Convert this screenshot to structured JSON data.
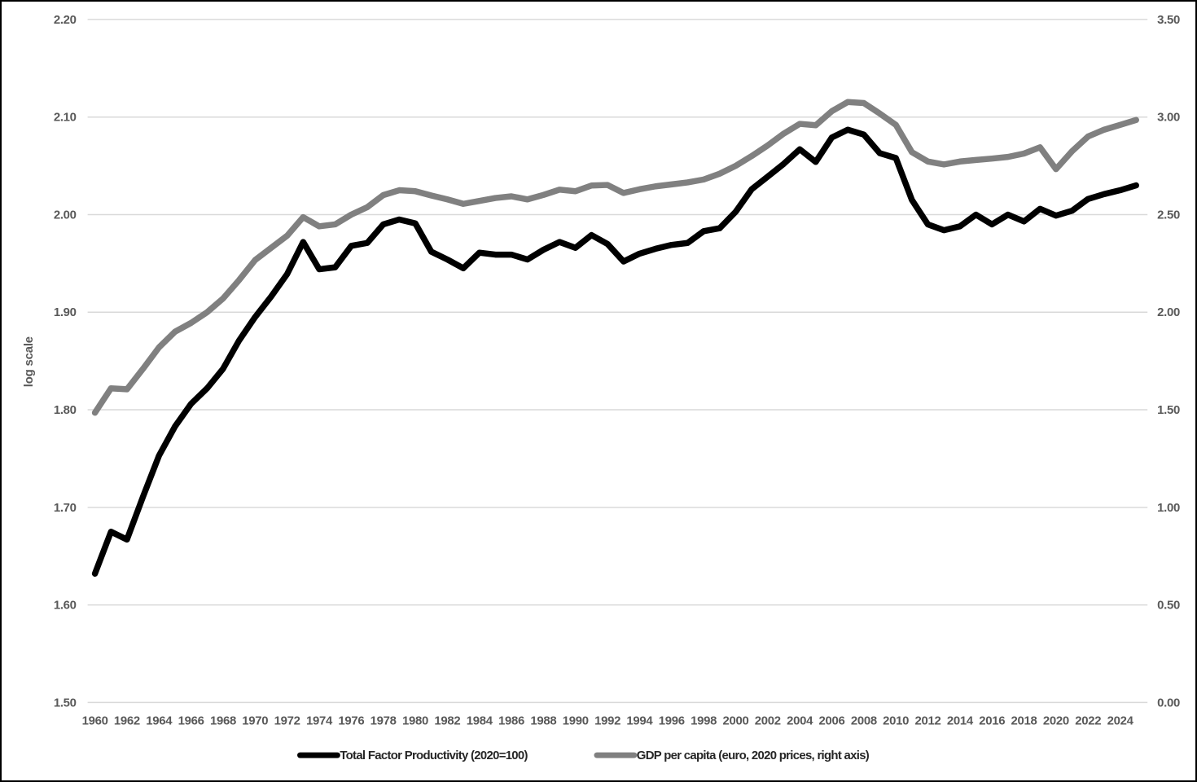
{
  "window": {
    "background": "#ffffff",
    "border_color": "#000000"
  },
  "chart_data": {
    "type": "line",
    "title": "",
    "xlabel": "",
    "ylabel": "log scale",
    "legend_position": "bottom",
    "grid": true,
    "x": [
      1960,
      1961,
      1962,
      1963,
      1964,
      1965,
      1966,
      1967,
      1968,
      1969,
      1970,
      1971,
      1972,
      1973,
      1974,
      1975,
      1976,
      1977,
      1978,
      1979,
      1980,
      1981,
      1982,
      1983,
      1984,
      1985,
      1986,
      1987,
      1988,
      1989,
      1990,
      1991,
      1992,
      1993,
      1994,
      1995,
      1996,
      1997,
      1998,
      1999,
      2000,
      2001,
      2002,
      2003,
      2004,
      2005,
      2006,
      2007,
      2008,
      2009,
      2010,
      2011,
      2012,
      2013,
      2014,
      2015,
      2016,
      2017,
      2018,
      2019,
      2020,
      2021,
      2022,
      2023,
      2024,
      2025
    ],
    "series": [
      {
        "name": "Total Factor Productivity (2020=100)",
        "axis": "left",
        "color": "#000000",
        "stroke_width": 7.5,
        "values": [
          1.632,
          1.675,
          1.667,
          1.711,
          1.753,
          1.783,
          1.806,
          1.822,
          1.842,
          1.871,
          1.895,
          1.916,
          1.939,
          1.972,
          1.944,
          1.946,
          1.968,
          1.971,
          1.99,
          1.995,
          1.991,
          1.962,
          1.954,
          1.945,
          1.961,
          1.959,
          1.959,
          1.954,
          1.964,
          1.972,
          1.966,
          1.979,
          1.97,
          1.952,
          1.96,
          1.965,
          1.969,
          1.971,
          1.983,
          1.986,
          2.003,
          2.026,
          2.039,
          2.052,
          2.067,
          2.054,
          2.079,
          2.087,
          2.082,
          2.063,
          2.058,
          2.015,
          1.99,
          1.984,
          1.988,
          2.0,
          1.99,
          2.0,
          1.993,
          2.006,
          1.999,
          2.004,
          2.016,
          2.021,
          2.025,
          2.03
        ]
      },
      {
        "name": "GDP per capita (euro, 2020 prices, right axis)",
        "axis": "right",
        "color": "#808080",
        "stroke_width": 7.5,
        "values": [
          1.485,
          1.61,
          1.605,
          1.71,
          1.82,
          1.9,
          1.945,
          2.0,
          2.07,
          2.165,
          2.267,
          2.33,
          2.392,
          2.487,
          2.44,
          2.45,
          2.5,
          2.538,
          2.6,
          2.625,
          2.62,
          2.598,
          2.578,
          2.555,
          2.57,
          2.585,
          2.594,
          2.578,
          2.601,
          2.628,
          2.62,
          2.649,
          2.652,
          2.611,
          2.63,
          2.645,
          2.655,
          2.665,
          2.68,
          2.71,
          2.75,
          2.8,
          2.855,
          2.915,
          2.965,
          2.958,
          3.03,
          3.077,
          3.072,
          3.018,
          2.96,
          2.82,
          2.772,
          2.757,
          2.772,
          2.78,
          2.787,
          2.796,
          2.813,
          2.845,
          2.733,
          2.825,
          2.9,
          2.935,
          2.96,
          2.985
        ]
      }
    ],
    "left_axis": {
      "label": "log scale",
      "min": 1.5,
      "max": 2.2,
      "ticks": [
        "2.20",
        "2.10",
        "2.00",
        "1.90",
        "1.80",
        "1.70",
        "1.60",
        "1.50"
      ]
    },
    "right_axis": {
      "min": 0.0,
      "max": 3.5,
      "ticks": [
        "3.50",
        "3.00",
        "2.50",
        "2.00",
        "1.50",
        "1.00",
        "0.50",
        "0.00"
      ]
    },
    "x_axis": {
      "tick_years": [
        1960,
        1962,
        1964,
        1966,
        1968,
        1970,
        1972,
        1974,
        1976,
        1978,
        1980,
        1982,
        1984,
        1986,
        1988,
        1990,
        1992,
        1994,
        1996,
        1998,
        2000,
        2002,
        2004,
        2006,
        2008,
        2010,
        2012,
        2014,
        2016,
        2018,
        2020,
        2022,
        2024
      ]
    },
    "colors": {
      "grid": "#d9d9d9",
      "tick_label": "#595959",
      "axis_title": "#595959",
      "legend_text": "#262626",
      "background": "#ffffff"
    }
  }
}
